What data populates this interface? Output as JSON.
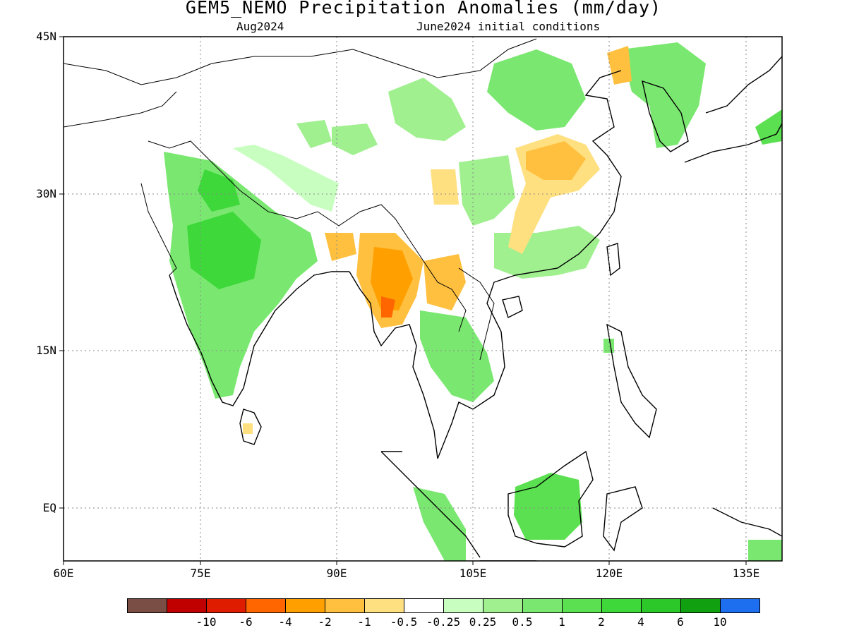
{
  "title": "GEM5_NEMO Precipitation Anomalies (mm/day)",
  "subtitle_left": "Aug2024",
  "subtitle_right": "June2024 initial conditions",
  "lat_labels": [
    "45N",
    "30N",
    "15N",
    "EQ"
  ],
  "lon_labels": [
    "60E",
    "75E",
    "90E",
    "105E",
    "120E",
    "135E"
  ],
  "colorbar": {
    "colors": [
      "#7a4e44",
      "#c00000",
      "#e01c00",
      "#ff6600",
      "#ffa000",
      "#ffc040",
      "#ffe080",
      "#ffffff",
      "#c8ffc0",
      "#a0f090",
      "#7ae870",
      "#5ae050",
      "#3ed83a",
      "#2cc82a",
      "#10a010",
      "#1e6ef0"
    ],
    "labels": [
      "-10",
      "-6",
      "-4",
      "-2",
      "-1",
      "-0.5",
      "-0.25",
      "0.25",
      "0.5",
      "1",
      "2",
      "4",
      "6",
      "10"
    ]
  },
  "map_colors": {
    "dark_green": "#3ed83a",
    "mid_green": "#7ae870",
    "light_green": "#a0f090",
    "pale_green": "#c8ffc0",
    "light_yellow": "#ffe080",
    "yellow": "#ffc040",
    "orange": "#ffa000",
    "dark_orange": "#ff6600"
  }
}
